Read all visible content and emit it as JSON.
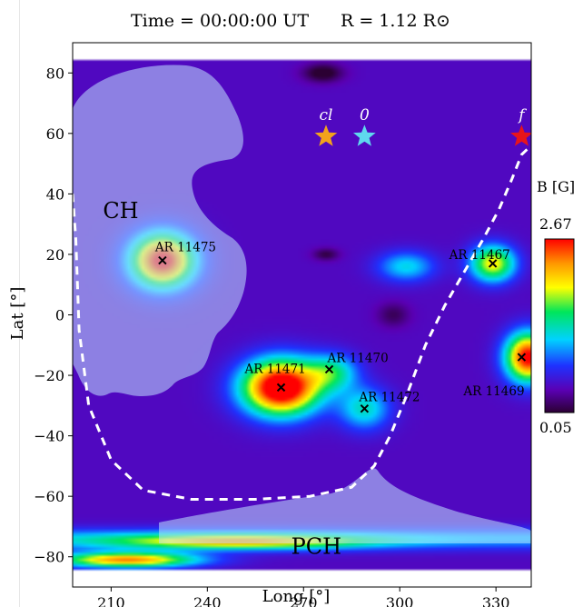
{
  "chart_data": {
    "type": "heatmap",
    "title_time": "Time = 00:00:00 UT",
    "title_radius": "R = 1.12 R⊙",
    "xlabel": "Long [°]",
    "ylabel": "Lat [°]",
    "xlim": [
      198,
      341
    ],
    "ylim": [
      -90,
      90
    ],
    "x_ticks": [
      210,
      240,
      270,
      300,
      330
    ],
    "y_ticks": [
      80,
      60,
      40,
      20,
      0,
      -20,
      -40,
      -60,
      -80
    ],
    "colorbar": {
      "label": "B [G]",
      "max": "2.67",
      "min": "0.05",
      "max_value": 2.67,
      "min_value": 0.05
    },
    "regions": [
      {
        "label": "CH",
        "x": 213,
        "y": 32
      },
      {
        "label": "PCH",
        "x": 274,
        "y": -79
      }
    ],
    "active_regions": [
      {
        "label": "AR 11475",
        "x": 226,
        "y": 18
      },
      {
        "label": "AR 11467",
        "x": 329,
        "y": 17
      },
      {
        "label": "AR 11471",
        "x": 263,
        "y": -24
      },
      {
        "label": "AR 11470",
        "x": 278,
        "y": -18
      },
      {
        "label": "AR 11472",
        "x": 289,
        "y": -31
      },
      {
        "label": "AR 11469",
        "x": 338,
        "y": -14
      }
    ],
    "stars": [
      {
        "label": "cl",
        "x": 277,
        "y": 59,
        "color": "#f2a21c"
      },
      {
        "label": "0",
        "x": 289,
        "y": 59,
        "color": "#5fd8ee"
      },
      {
        "label": "f",
        "x": 338,
        "y": 59,
        "color": "#e8141b"
      }
    ],
    "neutral_line": [
      [
        198,
        40
      ],
      [
        199,
        25
      ],
      [
        200,
        -5
      ],
      [
        203,
        -30
      ],
      [
        210,
        -48
      ],
      [
        220,
        -58
      ],
      [
        235,
        -61
      ],
      [
        255,
        -61
      ],
      [
        272,
        -60
      ],
      [
        285,
        -57
      ],
      [
        292,
        -50
      ],
      [
        297,
        -40
      ],
      [
        302,
        -27
      ],
      [
        308,
        -10
      ],
      [
        314,
        3
      ],
      [
        320,
        14
      ],
      [
        326,
        25
      ],
      [
        331,
        35
      ],
      [
        335,
        45
      ],
      [
        338,
        53
      ],
      [
        341,
        56
      ]
    ],
    "field_sources": [
      {
        "x": 263,
        "y": -24,
        "strength": 2.67,
        "width": 12,
        "height": 9
      },
      {
        "x": 226,
        "y": 18,
        "strength": 2.3,
        "width": 10,
        "height": 9
      },
      {
        "x": 329,
        "y": 17,
        "strength": 1.55,
        "width": 7,
        "height": 6
      },
      {
        "x": 340,
        "y": -14,
        "strength": 2.3,
        "width": 7,
        "height": 8
      },
      {
        "x": 279,
        "y": -19,
        "strength": 0.9,
        "width": 8,
        "height": 6
      },
      {
        "x": 289,
        "y": -31,
        "strength": 0.85,
        "width": 8,
        "height": 7
      },
      {
        "x": 302,
        "y": 16,
        "strength": 0.75,
        "width": 9,
        "height": 5
      },
      {
        "x": 250,
        "y": -75,
        "strength": 1.3,
        "width": 40,
        "height": 2.5
      },
      {
        "x": 215,
        "y": -81,
        "strength": 1.9,
        "width": 22,
        "height": 2.5
      }
    ],
    "field_background": 0.45,
    "field_band": {
      "y_center": -74,
      "half_width": 3.5,
      "strength": 0.6
    },
    "field_dark_spots": [
      {
        "x": 276,
        "y": 80,
        "strength": -0.5,
        "width": 6,
        "height": 3
      },
      {
        "x": 277,
        "y": 20,
        "strength": -0.35,
        "width": 4,
        "height": 2
      },
      {
        "x": 298,
        "y": 0,
        "strength": -0.3,
        "width": 5,
        "height": 4
      }
    ]
  }
}
